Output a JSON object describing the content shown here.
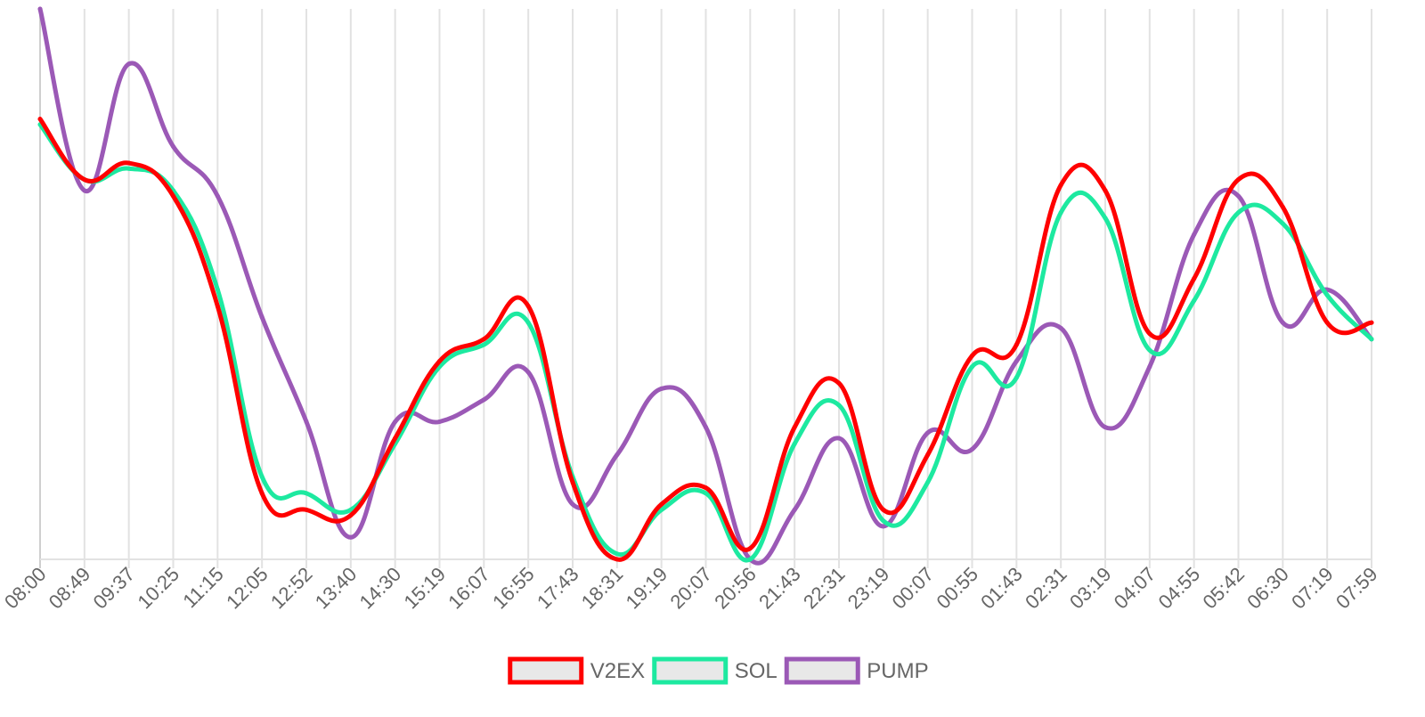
{
  "colors": {
    "v2ex": "#ff0000",
    "sol": "#1de9a0",
    "pump": "#9b59b6",
    "legend_fill": "#e8e8e8"
  },
  "chart_data": {
    "type": "line",
    "title": "",
    "xlabel": "",
    "ylabel": "",
    "y_axis_labels_shown": false,
    "grid": "vertical",
    "legend_position": "bottom-center",
    "ylim": [
      0,
      100
    ],
    "x": [
      "08:00",
      "08:49",
      "09:37",
      "10:25",
      "11:15",
      "12:05",
      "12:52",
      "13:40",
      "14:30",
      "15:19",
      "16:07",
      "16:55",
      "17:43",
      "18:31",
      "19:19",
      "20:07",
      "20:56",
      "21:43",
      "22:31",
      "23:19",
      "00:07",
      "00:55",
      "01:43",
      "02:31",
      "03:19",
      "04:07",
      "04:55",
      "05:42",
      "06:30",
      "07:19",
      "07:59"
    ],
    "series": [
      {
        "name": "V2EX",
        "values": [
          80,
          69,
          72,
          66,
          46,
          12,
          9,
          8,
          22,
          36,
          40,
          46,
          14,
          0,
          10,
          13,
          2,
          24,
          32,
          9,
          19,
          37,
          39,
          68,
          67,
          41,
          51,
          69,
          64,
          43,
          43
        ]
      },
      {
        "name": "SOL",
        "values": [
          79,
          69,
          71,
          67,
          49,
          15,
          12,
          9,
          21,
          35,
          39,
          43,
          15,
          1,
          9,
          12,
          0,
          21,
          28,
          7,
          14,
          35,
          33,
          63,
          62,
          38,
          47,
          63,
          61,
          48,
          40
        ]
      },
      {
        "name": "PUMP",
        "values": [
          100,
          67,
          90,
          75,
          66,
          44,
          25,
          4,
          25,
          25,
          29,
          34,
          10,
          19,
          31,
          24,
          0,
          9,
          22,
          6,
          23,
          20,
          36,
          42,
          24,
          35,
          59,
          66,
          43,
          49,
          40
        ]
      }
    ]
  }
}
